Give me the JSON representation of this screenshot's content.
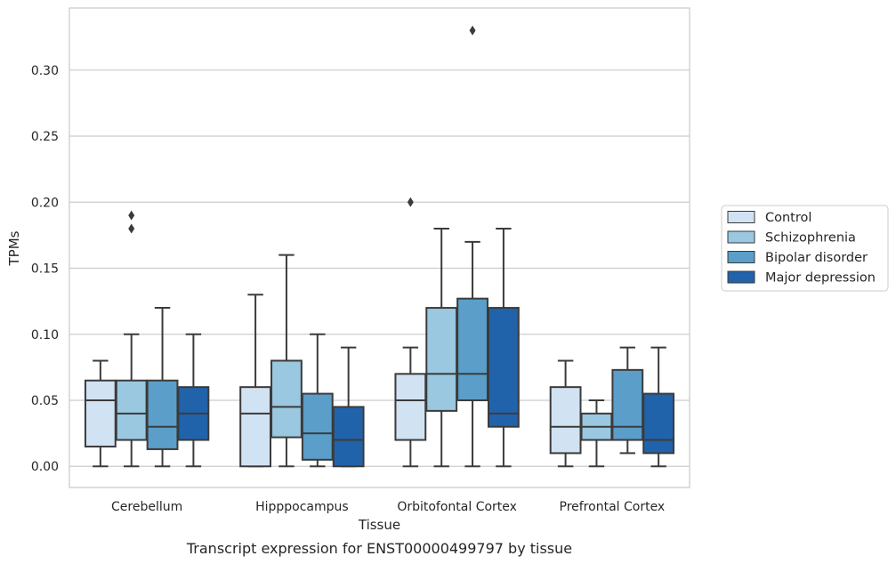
{
  "caption": "Transcript expression for ENST00000499797 by tissue",
  "chart_data": {
    "type": "box",
    "xlabel": "Tissue",
    "ylabel": "TPMs",
    "ylim": [
      -0.016,
      0.347
    ],
    "yticks": [
      0.0,
      0.05,
      0.1,
      0.15,
      0.2,
      0.25,
      0.3
    ],
    "ytick_labels": [
      "0.00",
      "0.05",
      "0.10",
      "0.15",
      "0.20",
      "0.25",
      "0.30"
    ],
    "grid": "horizontal",
    "legend_position": "right",
    "categories": [
      "Cerebellum",
      "Hipppocampus",
      "Orbitofontal Cortex",
      "Prefrontal Cortex"
    ],
    "series": [
      {
        "name": "Control",
        "color": "#d1e2f2",
        "boxes": [
          {
            "whislo": 0.0,
            "q1": 0.015,
            "med": 0.05,
            "q3": 0.065,
            "whishi": 0.08,
            "fliers": []
          },
          {
            "whislo": 0.0,
            "q1": 0.0,
            "med": 0.04,
            "q3": 0.06,
            "whishi": 0.13,
            "fliers": []
          },
          {
            "whislo": 0.0,
            "q1": 0.02,
            "med": 0.05,
            "q3": 0.07,
            "whishi": 0.09,
            "fliers": [
              0.2
            ]
          },
          {
            "whislo": 0.0,
            "q1": 0.01,
            "med": 0.03,
            "q3": 0.06,
            "whishi": 0.08,
            "fliers": []
          }
        ]
      },
      {
        "name": "Schizophrenia",
        "color": "#9ac8e0",
        "boxes": [
          {
            "whislo": 0.0,
            "q1": 0.02,
            "med": 0.04,
            "q3": 0.065,
            "whishi": 0.1,
            "fliers": [
              0.18,
              0.19
            ]
          },
          {
            "whislo": 0.0,
            "q1": 0.022,
            "med": 0.045,
            "q3": 0.08,
            "whishi": 0.16,
            "fliers": []
          },
          {
            "whislo": 0.0,
            "q1": 0.042,
            "med": 0.07,
            "q3": 0.12,
            "whishi": 0.18,
            "fliers": []
          },
          {
            "whislo": 0.0,
            "q1": 0.02,
            "med": 0.03,
            "q3": 0.04,
            "whishi": 0.05,
            "fliers": []
          }
        ]
      },
      {
        "name": "Bipolar disorder",
        "color": "#5a9ec9",
        "boxes": [
          {
            "whislo": 0.0,
            "q1": 0.013,
            "med": 0.03,
            "q3": 0.065,
            "whishi": 0.12,
            "fliers": []
          },
          {
            "whislo": 0.0,
            "q1": 0.005,
            "med": 0.025,
            "q3": 0.055,
            "whishi": 0.1,
            "fliers": []
          },
          {
            "whislo": 0.0,
            "q1": 0.05,
            "med": 0.07,
            "q3": 0.127,
            "whishi": 0.17,
            "fliers": [
              0.33
            ]
          },
          {
            "whislo": 0.01,
            "q1": 0.02,
            "med": 0.03,
            "q3": 0.073,
            "whishi": 0.09,
            "fliers": []
          }
        ]
      },
      {
        "name": "Major depression",
        "color": "#2163aa",
        "boxes": [
          {
            "whislo": 0.0,
            "q1": 0.02,
            "med": 0.04,
            "q3": 0.06,
            "whishi": 0.1,
            "fliers": []
          },
          {
            "whislo": 0.0,
            "q1": 0.0,
            "med": 0.02,
            "q3": 0.045,
            "whishi": 0.09,
            "fliers": []
          },
          {
            "whislo": 0.0,
            "q1": 0.03,
            "med": 0.04,
            "q3": 0.12,
            "whishi": 0.18,
            "fliers": []
          },
          {
            "whislo": 0.0,
            "q1": 0.01,
            "med": 0.02,
            "q3": 0.055,
            "whishi": 0.09,
            "fliers": []
          }
        ]
      }
    ]
  }
}
